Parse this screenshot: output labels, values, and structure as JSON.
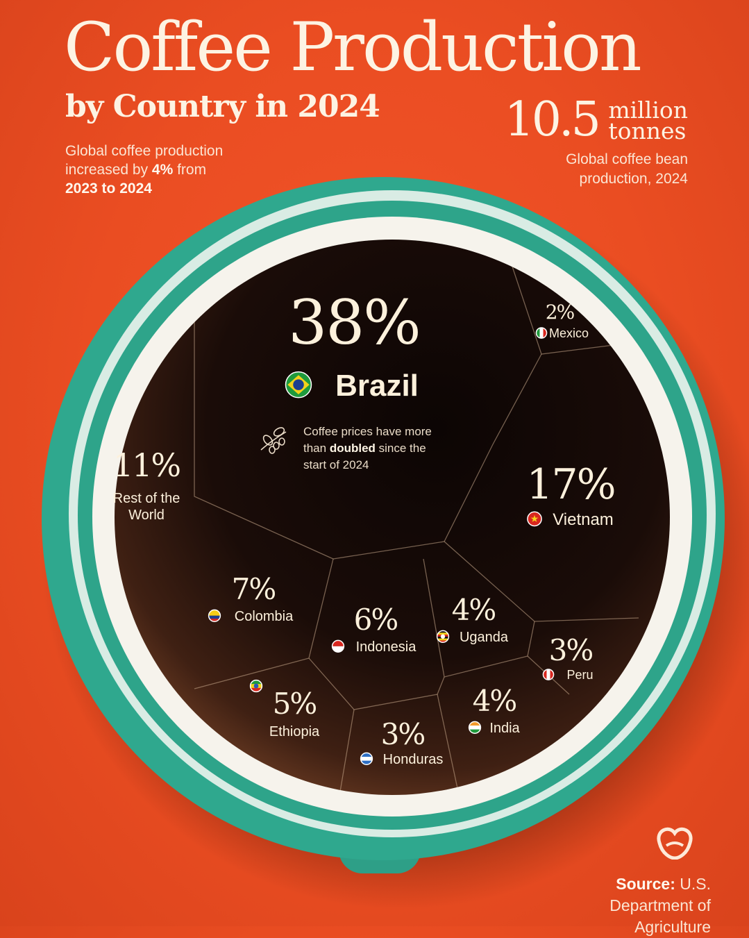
{
  "header": {
    "title": "Coffee Production",
    "subtitle": "by Country in 2024",
    "note_line1": "Global coffee production",
    "note_line2a": "increased by ",
    "note_line2b": "4%",
    "note_line2c": " from",
    "note_line3": "2023 to 2024"
  },
  "total": {
    "value": "10.5",
    "unit_line1": "million",
    "unit_line2": "tonnes",
    "caption_line1": "Global coffee bean",
    "caption_line2": "production, 2024"
  },
  "callout": {
    "text_a": "Coffee prices have more than ",
    "text_bold": "doubled",
    "text_b": " since the start of 2024"
  },
  "source": {
    "label": "Source:",
    "text": " U.S. Department of Agriculture"
  },
  "colors": {
    "background": "#ea4d22",
    "cup": "#2fa88e",
    "coffee": "#170b08",
    "text": "#fdf3e3"
  },
  "chart_data": {
    "type": "voronoi-treemap",
    "unit": "%",
    "categories": [
      "Brazil",
      "Vietnam",
      "Rest of the World",
      "Colombia",
      "Indonesia",
      "Ethiopia",
      "Uganda",
      "India",
      "Honduras",
      "Peru",
      "Mexico"
    ],
    "values": [
      38,
      17,
      11,
      7,
      6,
      5,
      4,
      4,
      3,
      3,
      2
    ],
    "cells": [
      {
        "country": "Brazil",
        "pct_label": "38%",
        "flag": "brazil-flag-icon"
      },
      {
        "country": "Vietnam",
        "pct_label": "17%",
        "flag": "vietnam-flag-icon"
      },
      {
        "country": "Rest of the World",
        "pct_label": "11%",
        "flag": ""
      },
      {
        "country": "Colombia",
        "pct_label": "7%",
        "flag": "colombia-flag-icon"
      },
      {
        "country": "Indonesia",
        "pct_label": "6%",
        "flag": "indonesia-flag-icon"
      },
      {
        "country": "Ethiopia",
        "pct_label": "5%",
        "flag": "ethiopia-flag-icon"
      },
      {
        "country": "Uganda",
        "pct_label": "4%",
        "flag": "uganda-flag-icon"
      },
      {
        "country": "India",
        "pct_label": "4%",
        "flag": "india-flag-icon"
      },
      {
        "country": "Honduras",
        "pct_label": "3%",
        "flag": "honduras-flag-icon"
      },
      {
        "country": "Peru",
        "pct_label": "3%",
        "flag": "peru-flag-icon"
      },
      {
        "country": "Mexico",
        "pct_label": "2%",
        "flag": "mexico-flag-icon"
      }
    ]
  }
}
